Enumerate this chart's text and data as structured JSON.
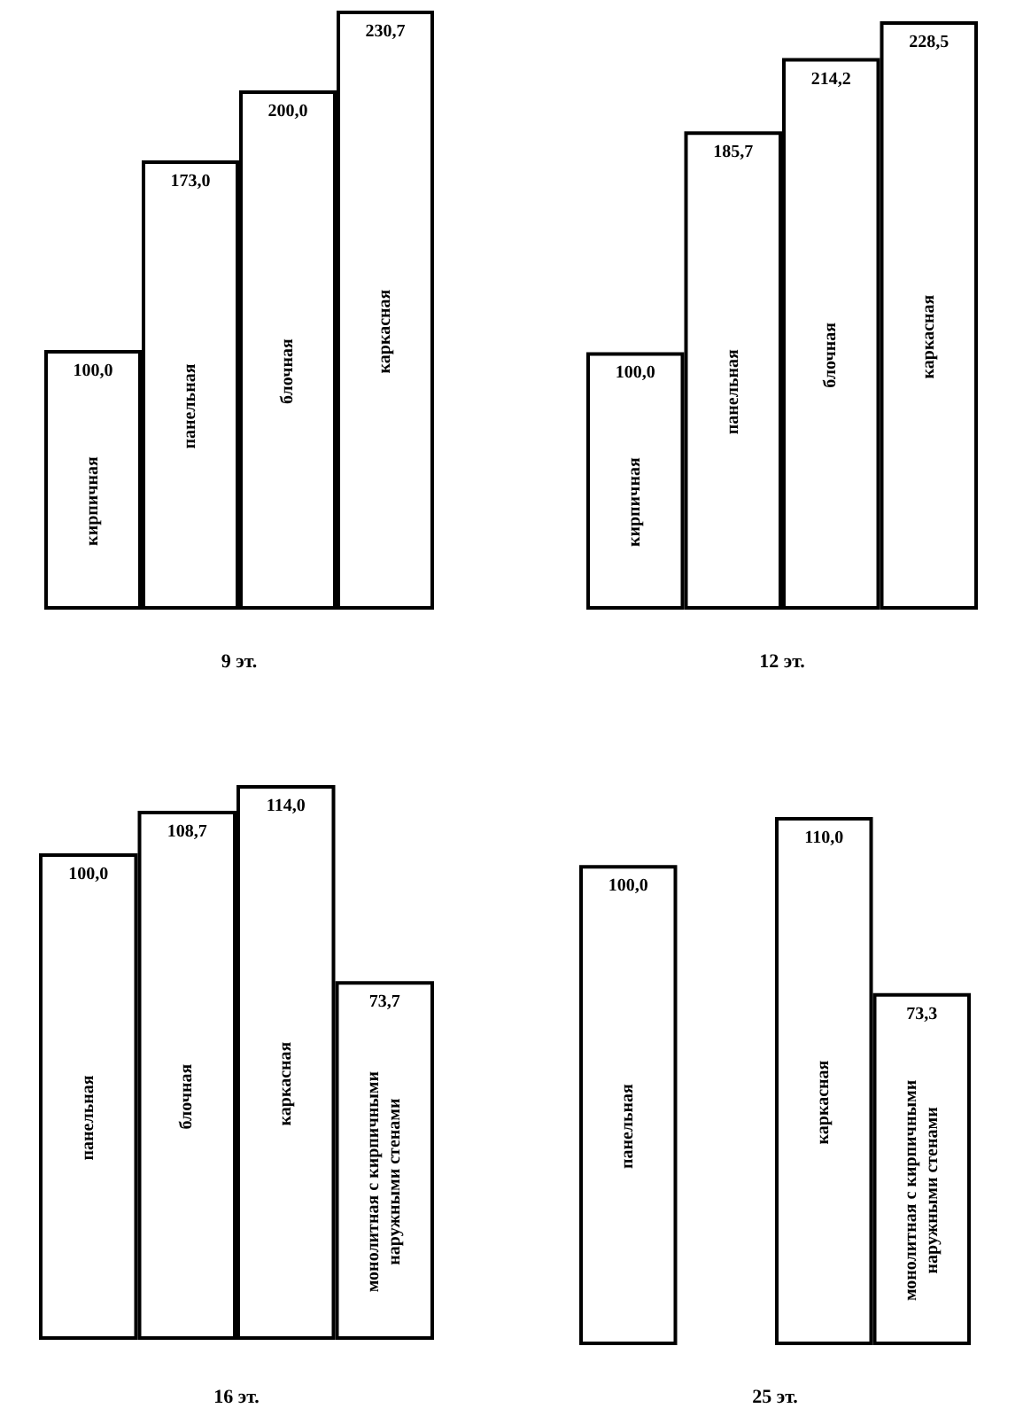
{
  "chart_data": [
    {
      "type": "bar",
      "xlabel": "9 эт.",
      "categories": [
        "кирпичная",
        "панельная",
        "блочная",
        "каркасная"
      ],
      "values": [
        100.0,
        173.0,
        200.0,
        230.7
      ],
      "value_labels": [
        "100,0",
        "173,0",
        "200,0",
        "230,7"
      ],
      "color": "#ffffff",
      "tick_labels": "x"
    },
    {
      "type": "bar",
      "xlabel": "12 эт.",
      "categories": [
        "кирпичная",
        "панельная",
        "блочная",
        "каркасная"
      ],
      "values": [
        100.0,
        185.7,
        214.2,
        228.5
      ],
      "value_labels": [
        "100,0",
        "185,7",
        "214,2",
        "228,5"
      ],
      "color": "#ffffff",
      "tick_labels": "x"
    },
    {
      "type": "bar",
      "xlabel": "16 эт.",
      "categories": [
        "панельная",
        "блочная",
        "каркасная",
        "монолитная с кирпичными наружными стенами"
      ],
      "values": [
        100.0,
        108.7,
        114.0,
        73.7
      ],
      "value_labels": [
        "100,0",
        "108,7",
        "114,0",
        "73,7"
      ],
      "color": "#ffffff",
      "tick_labels": "x"
    },
    {
      "type": "bar",
      "xlabel": "25 эт.",
      "categories": [
        "панельная",
        null,
        "каркасная",
        "монолитная с кирпичными наружными стенами"
      ],
      "values": [
        100.0,
        null,
        110.0,
        73.3
      ],
      "value_labels": [
        "100,0",
        null,
        "110,0",
        "73,3"
      ],
      "color": "#ffffff",
      "tick_labels": "x"
    }
  ]
}
